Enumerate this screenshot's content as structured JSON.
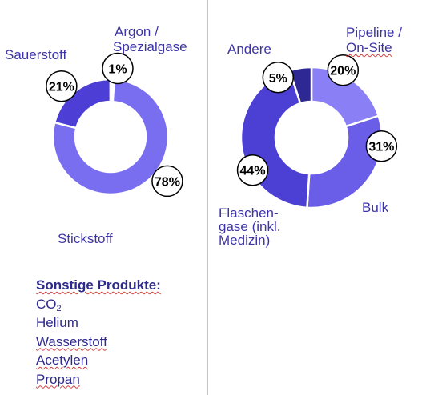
{
  "chart_data": [
    {
      "type": "pie",
      "variant": "donut",
      "categories": [
        "Stickstoff",
        "Sauerstoff",
        "Argon / Spezialgase"
      ],
      "values": [
        78,
        21,
        1
      ],
      "value_labels": [
        "78%",
        "21%",
        "1%"
      ],
      "colors": [
        "#7a6ef0",
        "#4d3fd6",
        "#ffffff"
      ]
    },
    {
      "type": "pie",
      "variant": "donut",
      "categories": [
        "Pipeline / On-Site",
        "Bulk",
        "Flaschengase (inkl. Medizin)",
        "Andere"
      ],
      "values": [
        20,
        31,
        44,
        5
      ],
      "value_labels": [
        "20%",
        "31%",
        "44%",
        "5%"
      ],
      "colors": [
        "#8a7ff5",
        "#6a5ee8",
        "#4c3fd4",
        "#2e2894"
      ]
    }
  ],
  "labels": {
    "stickstoff": "Stickstoff",
    "sauerstoff": "Sauerstoff",
    "argon_line1": "Argon /",
    "argon_line2": "Spezialgase",
    "andere": "Andere",
    "pipeline_line1": "Pipeline /",
    "pipeline_line2": "On-Site",
    "bulk": "Bulk",
    "flaschen_line1": "Flaschen-",
    "flaschen_line2": "gase (inkl.",
    "flaschen_line3": "Medizin)"
  },
  "products": {
    "heading": "Sonstige Produkte:",
    "co2_base": "CO",
    "co2_sub": "2",
    "items": [
      "Helium",
      "Wasserstoff",
      "Acetylen",
      "Propan"
    ]
  }
}
